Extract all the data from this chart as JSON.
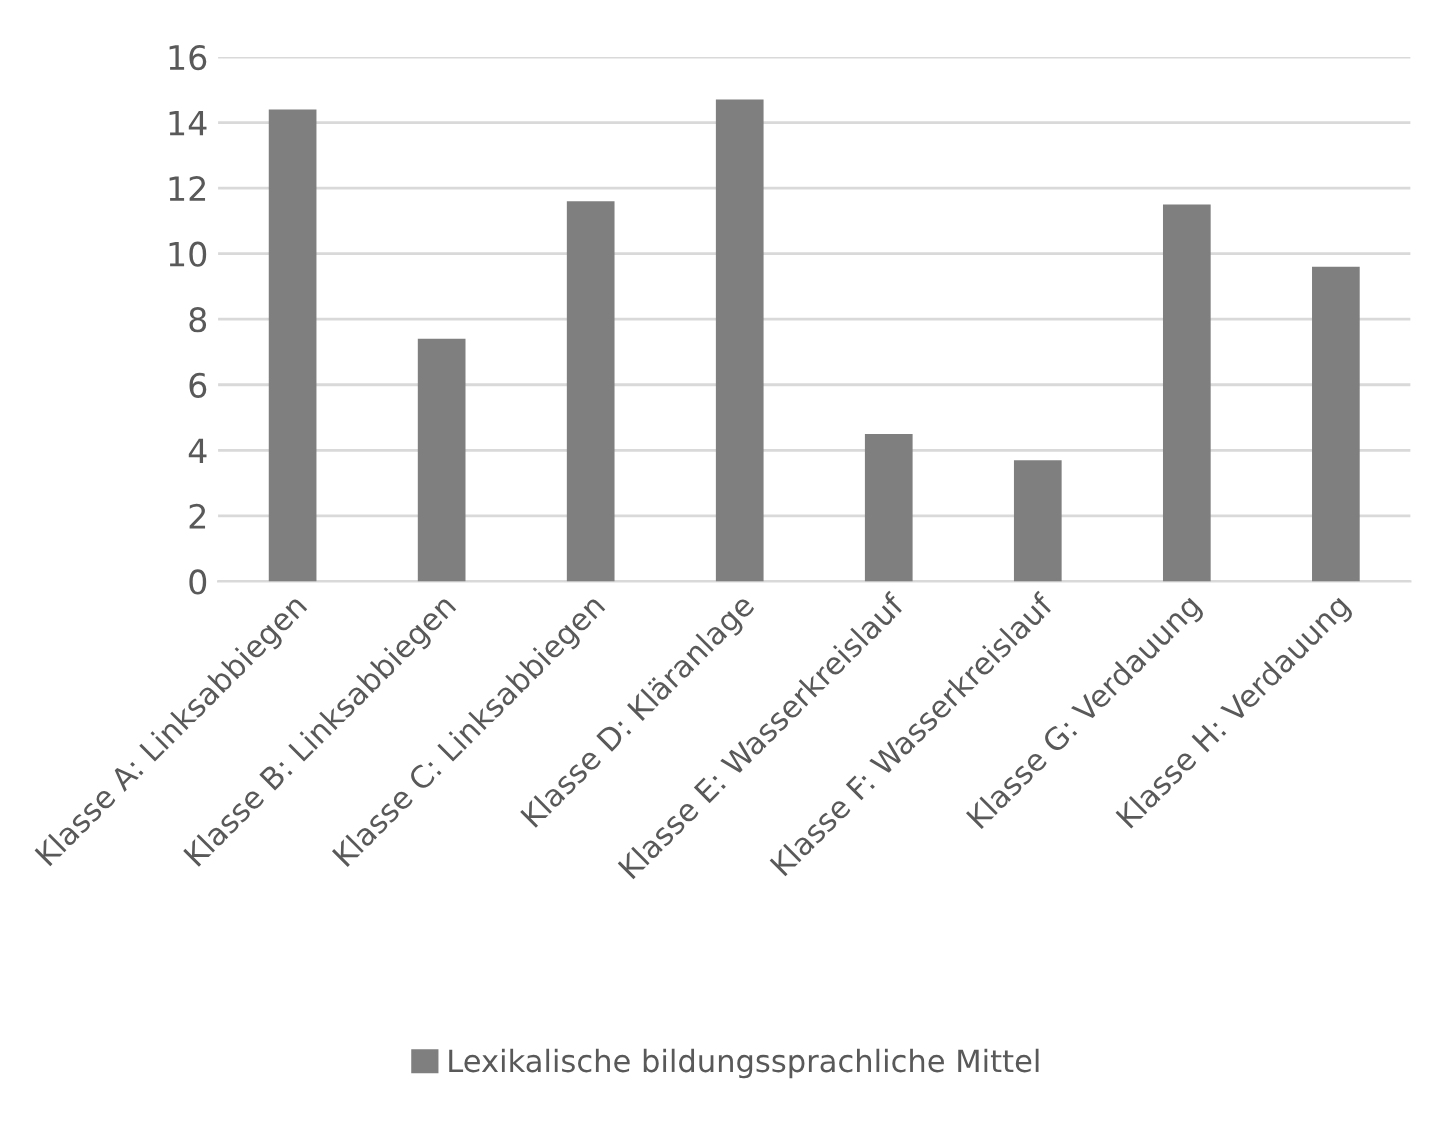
{
  "chart_data": {
    "type": "bar",
    "categories": [
      "Klasse A: Linksabbiegen",
      "Klasse B: Linksabbiegen",
      "Klasse C: Linksabbiegen",
      "Klasse D: Kläranlage",
      "Klasse E: Wasserkreislauf",
      "Klasse F: Wasserkreislauf",
      "Klasse G: Verdauung",
      "Klasse H: Verdauung"
    ],
    "series": [
      {
        "name": "Lexikalische bildungssprachliche Mittel",
        "color": "#7f7f7f",
        "values": [
          14.4,
          7.4,
          11.6,
          14.7,
          4.5,
          3.7,
          11.5,
          9.6
        ]
      }
    ],
    "ylim": [
      0,
      16
    ],
    "yticks": [
      0,
      2,
      4,
      6,
      8,
      10,
      12,
      14,
      16
    ],
    "grid": "y",
    "legend": "bottom"
  }
}
